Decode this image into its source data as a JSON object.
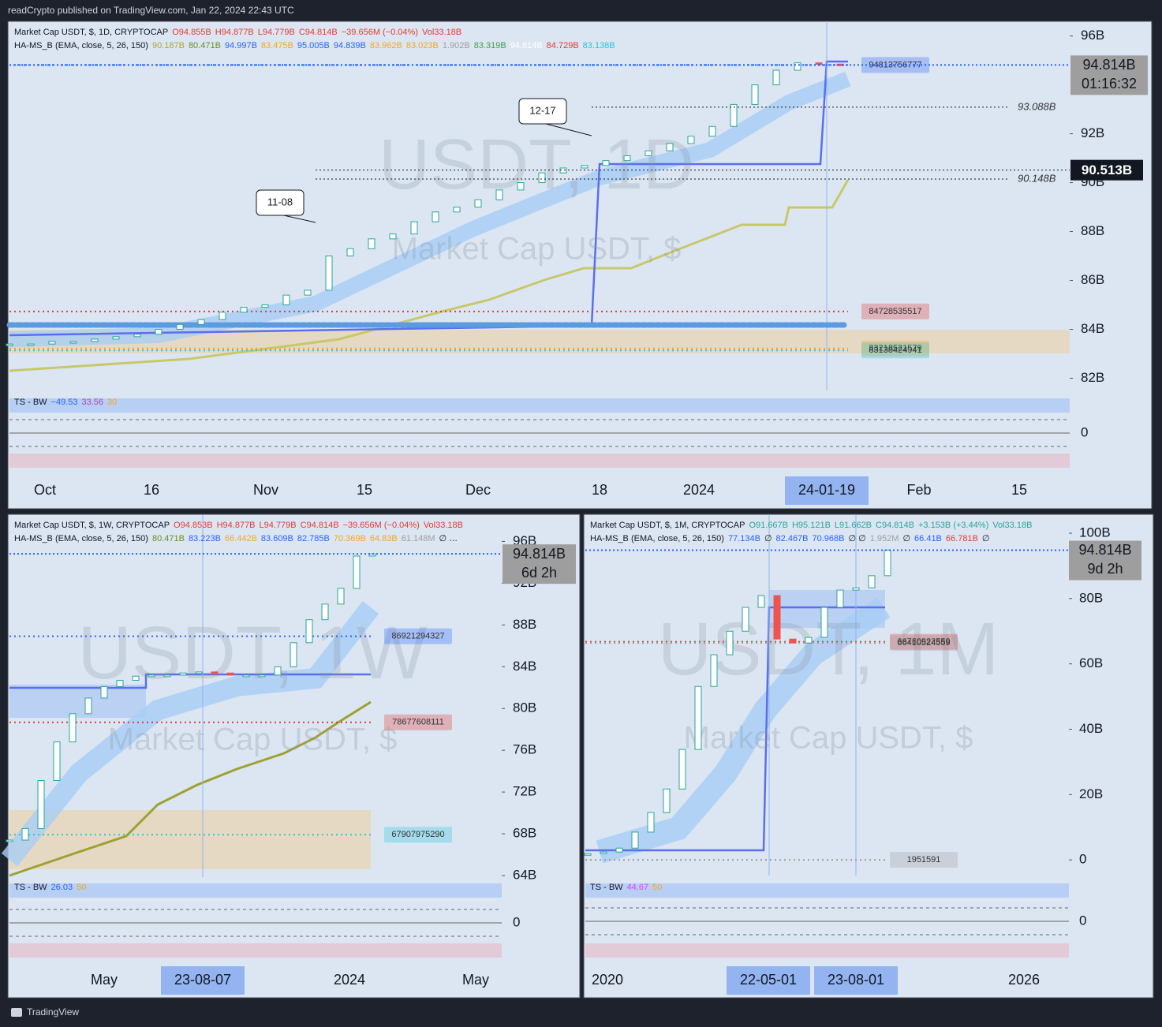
{
  "header": "readCrypto published on TradingView.com, Jan 22, 2024 22:43 UTC",
  "footer": "TradingView",
  "panels": [
    {
      "watermark": "USDT, 1D",
      "watermark_sub": "Market Cap USDT, $",
      "legend": [
        [
          {
            "text": "Market Cap USDT, $, 1D, CRYPTOCAP",
            "color": "#131722"
          },
          {
            "text": "O94.855B",
            "color": "#e53935"
          },
          {
            "text": "H94.877B",
            "color": "#e53935"
          },
          {
            "text": "L94.779B",
            "color": "#e53935"
          },
          {
            "text": "C94.814B",
            "color": "#e53935"
          },
          {
            "text": "−39.656M (−0.04%)",
            "color": "#e53935"
          },
          {
            "text": "Vol33.18B",
            "color": "#e53935"
          }
        ],
        [
          {
            "text": "HA-MS_B (EMA, close, 5, 26, 150)",
            "color": "#131722"
          },
          {
            "text": "90.187B",
            "color": "#a8a832"
          },
          {
            "text": "80.471B",
            "color": "#6b8e23"
          },
          {
            "text": "94.997B",
            "color": "#2962ff"
          },
          {
            "text": "83.475B",
            "color": "#f5a623"
          },
          {
            "text": "95.005B",
            "color": "#2962ff"
          },
          {
            "text": "94.839B",
            "color": "#2962ff"
          },
          {
            "text": "83.962B",
            "color": "#f5a623"
          },
          {
            "text": "83.023B",
            "color": "#f5a623"
          },
          {
            "text": "1.902B",
            "color": "#9e9e9e"
          },
          {
            "text": "83.319B",
            "color": "#43a047"
          },
          {
            "text": "94.814B",
            "color": "#ffffff"
          },
          {
            "text": "84.729B",
            "color": "#e53935"
          },
          {
            "text": "83.138B",
            "color": "#26c6da"
          }
        ]
      ],
      "ylim": [
        81.5,
        96.6
      ],
      "price_ticks": [
        {
          "value": 96,
          "label": "96B"
        },
        {
          "value": 92,
          "label": "92B"
        },
        {
          "value": 90,
          "label": "90B"
        },
        {
          "value": 88,
          "label": "88B"
        },
        {
          "value": 86,
          "label": "86B"
        },
        {
          "value": 84,
          "label": "84B"
        },
        {
          "value": 82,
          "label": "82B"
        }
      ],
      "closes": [
        83.4,
        83.4,
        83.5,
        83.5,
        83.6,
        83.7,
        83.8,
        84.0,
        84.2,
        84.4,
        84.7,
        84.9,
        85.0,
        85.4,
        85.6,
        87.0,
        87.3,
        87.7,
        87.9,
        88.4,
        88.8,
        89.0,
        89.3,
        89.7,
        90.0,
        90.4,
        90.6,
        90.7,
        90.9,
        91.1,
        91.3,
        91.6,
        91.9,
        92.3,
        93.2,
        94.0,
        94.6,
        94.9,
        94.85,
        94.8
      ],
      "last_price": {
        "value": 94.814,
        "label": "94.814B"
      },
      "countdown": "01:16:32",
      "levels": [
        {
          "value": 94.813756777,
          "label": "94813756777",
          "color": "#2962ff"
        },
        {
          "value": 84.728535517,
          "label": "84728535517",
          "color": "#e53935"
        },
        {
          "value": 83.218521579,
          "label": "83218521579",
          "color": "#f5a623"
        },
        {
          "value": 83.138424941,
          "label": "83138424941",
          "color": "#26c6da"
        }
      ],
      "price_markers": [
        {
          "value": 93.088,
          "label": "93.088B"
        },
        {
          "value": 90.148,
          "label": "90.148B"
        }
      ],
      "highlight_price": {
        "value": 90.513,
        "label": "90.513B"
      },
      "callouts": [
        "12-17",
        "11-08"
      ],
      "osc_legend": [
        {
          "text": "TS - BW",
          "color": "#131722"
        },
        {
          "text": "−49.53",
          "color": "#2962ff"
        },
        {
          "text": "33.56",
          "color": "#ab47bc"
        },
        {
          "text": "30",
          "color": "#f5a623"
        }
      ],
      "osc_ticks": [
        0
      ],
      "time_labels": [
        "Oct",
        "16",
        "Nov",
        "15",
        "Dec",
        "18",
        "2024",
        "Feb",
        "15"
      ],
      "cursor_labels": [
        "24-01-19"
      ]
    },
    {
      "watermark": "USDT, 1W",
      "watermark_sub": "Market Cap USDT, $",
      "legend": [
        [
          {
            "text": "Market Cap USDT, $, 1W, CRYPTOCAP",
            "color": "#131722"
          },
          {
            "text": "O94.853B",
            "color": "#e53935"
          },
          {
            "text": "H94.877B",
            "color": "#e53935"
          },
          {
            "text": "L94.779B",
            "color": "#e53935"
          },
          {
            "text": "C94.814B",
            "color": "#e53935"
          },
          {
            "text": "−39.656M (−0.04%)",
            "color": "#e53935"
          },
          {
            "text": "Vol33.18B",
            "color": "#e53935"
          }
        ],
        [
          {
            "text": "HA-MS_B (EMA, close, 5, 26, 150)",
            "color": "#131722"
          },
          {
            "text": "80.471B",
            "color": "#6b8e23"
          },
          {
            "text": "83.223B",
            "color": "#2962ff"
          },
          {
            "text": "66.442B",
            "color": "#f5a623"
          },
          {
            "text": "83.609B",
            "color": "#2962ff"
          },
          {
            "text": "82.785B",
            "color": "#2962ff"
          },
          {
            "text": "70.369B",
            "color": "#f5a623"
          },
          {
            "text": "64.83B",
            "color": "#f5a623"
          },
          {
            "text": "61.148M",
            "color": "#9e9e9e"
          },
          {
            "text": "∅ …",
            "color": "#131722"
          }
        ]
      ],
      "ylim": [
        63.85,
        98.6
      ],
      "price_ticks": [
        {
          "value": 96,
          "label": "96B"
        },
        {
          "value": 92,
          "label": "92B"
        },
        {
          "value": 88,
          "label": "88B"
        },
        {
          "value": 84,
          "label": "84B"
        },
        {
          "value": 80,
          "label": "80B"
        },
        {
          "value": 76,
          "label": "76B"
        },
        {
          "value": 72,
          "label": "72B"
        },
        {
          "value": 68,
          "label": "68B"
        },
        {
          "value": 64,
          "label": "64B"
        }
      ],
      "closes": [
        67.4,
        68.5,
        73.1,
        76.8,
        79.5,
        81.0,
        82.1,
        82.7,
        83.1,
        83.2,
        83.2,
        83.4,
        83.5,
        83.4,
        83.2,
        83.2,
        83.2,
        84.0,
        86.3,
        88.5,
        90.0,
        91.5,
        94.6,
        94.8
      ],
      "last_price": {
        "value": 94.814,
        "label": "94.814B"
      },
      "countdown": "6d 2h",
      "levels": [
        {
          "value": 86.921294327,
          "label": "86921294327",
          "color": "#2962ff"
        },
        {
          "value": 78.677608111,
          "label": "78677608111",
          "color": "#e53935"
        },
        {
          "value": 67.90797529,
          "label": "67907975290",
          "color": "#26c6da"
        }
      ],
      "osc_legend": [
        {
          "text": "TS - BW",
          "color": "#131722"
        },
        {
          "text": "26.03",
          "color": "#2962ff"
        },
        {
          "text": "50",
          "color": "#f5a623"
        }
      ],
      "osc_ticks": [
        0
      ],
      "time_labels": [
        "May",
        "2024",
        "May"
      ],
      "cursor_labels": [
        "23-08-07"
      ]
    },
    {
      "watermark": "USDT, 1M",
      "watermark_sub": "Market Cap USDT, $",
      "legend": [
        [
          {
            "text": "Market Cap USDT, $, 1M, CRYPTOCAP",
            "color": "#131722"
          },
          {
            "text": "O91.667B",
            "color": "#26a69a"
          },
          {
            "text": "H95.121B",
            "color": "#26a69a"
          },
          {
            "text": "L91.662B",
            "color": "#26a69a"
          },
          {
            "text": "C94.814B",
            "color": "#26a69a"
          },
          {
            "text": "+3.153B (+3.44%)",
            "color": "#26a69a"
          },
          {
            "text": "Vol33.18B",
            "color": "#26a69a"
          }
        ],
        [
          {
            "text": "HA-MS_B (EMA, close, 5, 26, 150)",
            "color": "#131722"
          },
          {
            "text": "77.134B",
            "color": "#2962ff"
          },
          {
            "text": "∅",
            "color": "#131722"
          },
          {
            "text": "82.467B",
            "color": "#2962ff"
          },
          {
            "text": "70.968B",
            "color": "#2962ff"
          },
          {
            "text": "∅ ∅",
            "color": "#131722"
          },
          {
            "text": "1.952M",
            "color": "#9e9e9e"
          },
          {
            "text": "∅",
            "color": "#131722"
          },
          {
            "text": "66.41B",
            "color": "#2962ff"
          },
          {
            "text": "66.781B",
            "color": "#e53935"
          },
          {
            "text": "∅",
            "color": "#131722"
          }
        ]
      ],
      "ylim": [
        -4.8,
        105.8
      ],
      "price_ticks": [
        {
          "value": 100,
          "label": "100B"
        },
        {
          "value": 80,
          "label": "80B"
        },
        {
          "value": 60,
          "label": "60B"
        },
        {
          "value": 40,
          "label": "40B"
        },
        {
          "value": 20,
          "label": "20B"
        },
        0
      ],
      "closes": [
        1.9,
        2.4,
        3.6,
        8.5,
        14.5,
        21.7,
        33.8,
        53.1,
        62.8,
        70.0,
        77.3,
        80.9,
        67.6,
        66.4,
        68.1,
        77.3,
        82.6,
        83.3,
        87.0,
        94.8
      ],
      "last_price": {
        "value": 94.814,
        "label": "94.814B"
      },
      "countdown": "9d 2h",
      "levels": [
        {
          "value": 66.780922559,
          "label": "66780922559",
          "color": "#e53935"
        },
        {
          "value": 66.410524559,
          "label": "66410524559",
          "color": "#9e9e9e"
        },
        {
          "value": 0.001951591,
          "label": "1951591",
          "color": "#9e9e9e"
        }
      ],
      "osc_legend": [
        {
          "text": "TS - BW",
          "color": "#131722"
        },
        {
          "text": "44.67",
          "color": "#e040fb"
        },
        {
          "text": "50",
          "color": "#f5a623"
        }
      ],
      "osc_ticks": [
        0
      ],
      "time_labels": [
        "2020",
        "2026"
      ],
      "cursor_labels": [
        "22-05-01",
        "23-08-01"
      ]
    }
  ]
}
